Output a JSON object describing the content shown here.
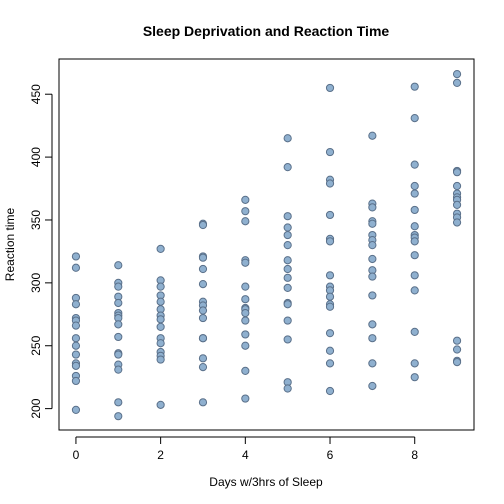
{
  "chart_data": {
    "type": "scatter",
    "title": "Sleep Deprivation and Reaction Time",
    "xlabel": "Days w/3hrs of Sleep",
    "ylabel": "Reaction time",
    "xlim": [
      -0.4,
      9.4
    ],
    "ylim": [
      183,
      478
    ],
    "xticks": [
      0,
      2,
      4,
      6,
      8
    ],
    "yticks": [
      200,
      250,
      300,
      350,
      400,
      450
    ],
    "grid": false,
    "point_fill": "#8fb0cf",
    "point_stroke": "#5a708a",
    "series": [
      {
        "points": [
          [
            0,
            321
          ],
          [
            0,
            312
          ],
          [
            0,
            288
          ],
          [
            0,
            283
          ],
          [
            0,
            272
          ],
          [
            0,
            270
          ],
          [
            0,
            266
          ],
          [
            0,
            256
          ],
          [
            0,
            250
          ],
          [
            0,
            243
          ],
          [
            0,
            236
          ],
          [
            0,
            234
          ],
          [
            0,
            226
          ],
          [
            0,
            222
          ],
          [
            0,
            199
          ],
          [
            1,
            314
          ],
          [
            1,
            300
          ],
          [
            1,
            297
          ],
          [
            1,
            289
          ],
          [
            1,
            284
          ],
          [
            1,
            276
          ],
          [
            1,
            274
          ],
          [
            1,
            272
          ],
          [
            1,
            267
          ],
          [
            1,
            257
          ],
          [
            1,
            244
          ],
          [
            1,
            243
          ],
          [
            1,
            235
          ],
          [
            1,
            231
          ],
          [
            1,
            205
          ],
          [
            1,
            194
          ],
          [
            2,
            327
          ],
          [
            2,
            302
          ],
          [
            2,
            297
          ],
          [
            2,
            290
          ],
          [
            2,
            285
          ],
          [
            2,
            279
          ],
          [
            2,
            274
          ],
          [
            2,
            271
          ],
          [
            2,
            265
          ],
          [
            2,
            256
          ],
          [
            2,
            252
          ],
          [
            2,
            245
          ],
          [
            2,
            242
          ],
          [
            2,
            239
          ],
          [
            2,
            203
          ],
          [
            3,
            347
          ],
          [
            3,
            346
          ],
          [
            3,
            321
          ],
          [
            3,
            320
          ],
          [
            3,
            311
          ],
          [
            3,
            299
          ],
          [
            3,
            285
          ],
          [
            3,
            282
          ],
          [
            3,
            278
          ],
          [
            3,
            272
          ],
          [
            3,
            256
          ],
          [
            3,
            256
          ],
          [
            3,
            240
          ],
          [
            3,
            233
          ],
          [
            3,
            205
          ],
          [
            4,
            366
          ],
          [
            4,
            357
          ],
          [
            4,
            349
          ],
          [
            4,
            318
          ],
          [
            4,
            316
          ],
          [
            4,
            297
          ],
          [
            4,
            287
          ],
          [
            4,
            280
          ],
          [
            4,
            279
          ],
          [
            4,
            276
          ],
          [
            4,
            270
          ],
          [
            4,
            259
          ],
          [
            4,
            250
          ],
          [
            4,
            230
          ],
          [
            4,
            208
          ],
          [
            5,
            415
          ],
          [
            5,
            392
          ],
          [
            5,
            353
          ],
          [
            5,
            344
          ],
          [
            5,
            338
          ],
          [
            5,
            330
          ],
          [
            5,
            318
          ],
          [
            5,
            311
          ],
          [
            5,
            304
          ],
          [
            5,
            296
          ],
          [
            5,
            284
          ],
          [
            5,
            283
          ],
          [
            5,
            270
          ],
          [
            5,
            255
          ],
          [
            5,
            221
          ],
          [
            5,
            216
          ],
          [
            6,
            455
          ],
          [
            6,
            404
          ],
          [
            6,
            382
          ],
          [
            6,
            379
          ],
          [
            6,
            354
          ],
          [
            6,
            335
          ],
          [
            6,
            333
          ],
          [
            6,
            306
          ],
          [
            6,
            297
          ],
          [
            6,
            294
          ],
          [
            6,
            289
          ],
          [
            6,
            283
          ],
          [
            6,
            281
          ],
          [
            6,
            260
          ],
          [
            6,
            246
          ],
          [
            6,
            236
          ],
          [
            6,
            214
          ],
          [
            7,
            417
          ],
          [
            7,
            363
          ],
          [
            7,
            360
          ],
          [
            7,
            349
          ],
          [
            7,
            347
          ],
          [
            7,
            338
          ],
          [
            7,
            334
          ],
          [
            7,
            330
          ],
          [
            7,
            319
          ],
          [
            7,
            310
          ],
          [
            7,
            305
          ],
          [
            7,
            290
          ],
          [
            7,
            267
          ],
          [
            7,
            256
          ],
          [
            7,
            236
          ],
          [
            7,
            218
          ],
          [
            8,
            456
          ],
          [
            8,
            431
          ],
          [
            8,
            394
          ],
          [
            8,
            377
          ],
          [
            8,
            371
          ],
          [
            8,
            358
          ],
          [
            8,
            345
          ],
          [
            8,
            338
          ],
          [
            8,
            336
          ],
          [
            8,
            333
          ],
          [
            8,
            322
          ],
          [
            8,
            306
          ],
          [
            8,
            294
          ],
          [
            8,
            261
          ],
          [
            8,
            236
          ],
          [
            8,
            225
          ],
          [
            9,
            466
          ],
          [
            9,
            459
          ],
          [
            9,
            389
          ],
          [
            9,
            388
          ],
          [
            9,
            377
          ],
          [
            9,
            371
          ],
          [
            9,
            368
          ],
          [
            9,
            366
          ],
          [
            9,
            362
          ],
          [
            9,
            355
          ],
          [
            9,
            352
          ],
          [
            9,
            348
          ],
          [
            9,
            254
          ],
          [
            9,
            247
          ],
          [
            9,
            238
          ],
          [
            9,
            237
          ]
        ]
      }
    ]
  }
}
